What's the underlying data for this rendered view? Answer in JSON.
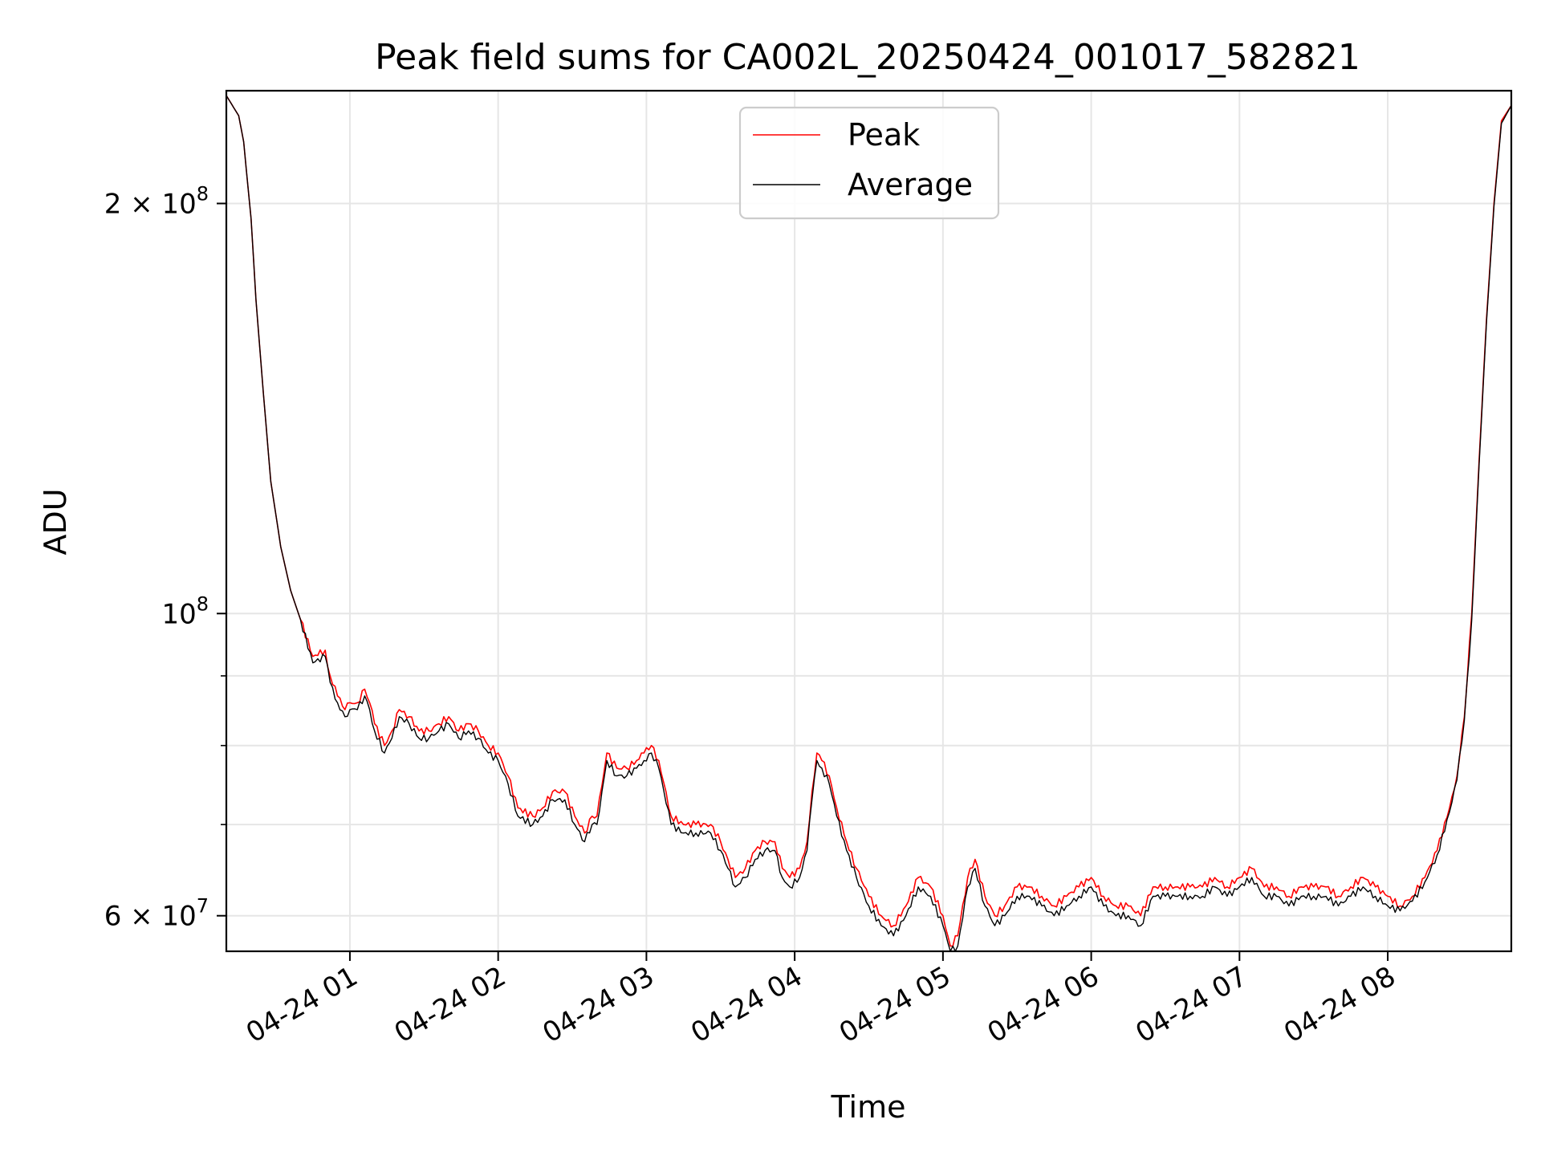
{
  "chart_data": {
    "type": "line",
    "title": "Peak field sums for CA002L_20250424_001017_582821",
    "xlabel": "Time",
    "ylabel": "ADU",
    "yscale": "log",
    "xlim": [
      "2025-04-24 00:10",
      "2025-04-24 08:50"
    ],
    "ylim": [
      56500000,
      242000000
    ],
    "grid": true,
    "legend_position": "top-center",
    "x_ticks": [
      "04-24 01",
      "04-24 02",
      "04-24 03",
      "04-24 04",
      "04-24 05",
      "04-24 06",
      "04-24 07",
      "04-24 08"
    ],
    "y_ticks": [
      {
        "value": 200000000,
        "base": "2 × 10",
        "exp": "8"
      },
      {
        "value": 100000000,
        "base": "10",
        "exp": "8"
      },
      {
        "value": 60000000,
        "base": "6 × 10",
        "exp": "7"
      }
    ],
    "y_minor_ticks": [
      70000000,
      80000000,
      90000000
    ],
    "x": [
      "00:10",
      "00:15",
      "00:17",
      "00:20",
      "00:22",
      "00:25",
      "00:28",
      "00:32",
      "00:36",
      "00:40",
      "00:45",
      "00:50",
      "00:52",
      "00:55",
      "00:58",
      "01:00",
      "01:03",
      "01:06",
      "01:08",
      "01:10",
      "01:14",
      "01:17",
      "01:20",
      "01:24",
      "01:28",
      "01:32",
      "01:36",
      "01:40",
      "01:44",
      "01:48",
      "01:52",
      "01:56",
      "02:00",
      "02:04",
      "02:08",
      "02:14",
      "02:18",
      "02:22",
      "02:27",
      "02:31",
      "02:35",
      "02:38",
      "02:40",
      "02:44",
      "02:48",
      "02:52",
      "02:56",
      "02:59",
      "03:02",
      "03:05",
      "03:10",
      "03:15",
      "03:20",
      "03:26",
      "03:30",
      "03:33",
      "03:36",
      "03:40",
      "03:44",
      "03:48",
      "03:52",
      "03:55",
      "03:58",
      "04:02",
      "04:05",
      "04:07",
      "04:09",
      "04:11",
      "04:14",
      "04:17",
      "04:21",
      "04:25",
      "04:30",
      "04:35",
      "04:40",
      "04:45",
      "04:50",
      "04:55",
      "05:00",
      "05:03",
      "05:06",
      "05:10",
      "05:13",
      "05:17",
      "05:21",
      "05:25",
      "05:30",
      "05:35",
      "05:40",
      "05:45",
      "05:50",
      "05:55",
      "06:00",
      "06:05",
      "06:10",
      "06:15",
      "06:20",
      "06:25",
      "06:30",
      "06:35",
      "06:40",
      "06:45",
      "06:50",
      "06:55",
      "07:00",
      "07:05",
      "07:10",
      "07:15",
      "07:20",
      "07:25",
      "07:30",
      "07:35",
      "07:40",
      "07:45",
      "07:50",
      "07:55",
      "08:00",
      "08:05",
      "08:10",
      "08:15",
      "08:20",
      "08:25",
      "08:28",
      "08:31",
      "08:34",
      "08:37",
      "08:40",
      "08:43",
      "08:46",
      "08:50"
    ],
    "series": [
      {
        "name": "Peak",
        "color": "#ff0000",
        "values": [
          240000000,
          232000000,
          222000000,
          195000000,
          170000000,
          145000000,
          125000000,
          112000000,
          104000000,
          99000000,
          93000000,
          94000000,
          90000000,
          87000000,
          85000000,
          86000000,
          86000000,
          88000000,
          86000000,
          83000000,
          80000000,
          82000000,
          85000000,
          84000000,
          82000000,
          82000000,
          83000000,
          84000000,
          82000000,
          83000000,
          82000000,
          80000000,
          79000000,
          76000000,
          72000000,
          71000000,
          72000000,
          74000000,
          74000000,
          71000000,
          69000000,
          71000000,
          71000000,
          79000000,
          77000000,
          77000000,
          78000000,
          79000000,
          80000000,
          78000000,
          71000000,
          70000000,
          70000000,
          70000000,
          68000000,
          66000000,
          64000000,
          65000000,
          67000000,
          68000000,
          68000000,
          65000000,
          64000000,
          65000000,
          68000000,
          74000000,
          79000000,
          78000000,
          76000000,
          72000000,
          68000000,
          65000000,
          62000000,
          60000000,
          59000000,
          61000000,
          64000000,
          63000000,
          60000000,
          57000000,
          58000000,
          64000000,
          66000000,
          62000000,
          60000000,
          61000000,
          63000000,
          63000000,
          62000000,
          61000000,
          62000000,
          63000000,
          64000000,
          62000000,
          61000000,
          61000000,
          60000000,
          63000000,
          63000000,
          63000000,
          63000000,
          63000000,
          64000000,
          63000000,
          64000000,
          65000000,
          63000000,
          63000000,
          62000000,
          63000000,
          63000000,
          63000000,
          62000000,
          63000000,
          64000000,
          63000000,
          62000000,
          61000000,
          62000000,
          64000000,
          67000000,
          72000000,
          76000000,
          84000000,
          100000000,
          130000000,
          165000000,
          200000000,
          230000000,
          236000000
        ]
      },
      {
        "name": "Average",
        "color": "#000000",
        "values": [
          240000000,
          232000000,
          222000000,
          195000000,
          170000000,
          145000000,
          125000000,
          112000000,
          104000000,
          99000000,
          92000000,
          93000000,
          89000000,
          86000000,
          84000000,
          85000000,
          85000000,
          87000000,
          85000000,
          82000000,
          79000000,
          81000000,
          84000000,
          83000000,
          81000000,
          81000000,
          82000000,
          83000000,
          81000000,
          82000000,
          81000000,
          79000000,
          78000000,
          75000000,
          71000000,
          70000000,
          71000000,
          73000000,
          73000000,
          70000000,
          68000000,
          70000000,
          70000000,
          78000000,
          76000000,
          76000000,
          77000000,
          78000000,
          79000000,
          77000000,
          70000000,
          69000000,
          69000000,
          69000000,
          67000000,
          65000000,
          63000000,
          64000000,
          66000000,
          67000000,
          67000000,
          64000000,
          63000000,
          64000000,
          67000000,
          73000000,
          78000000,
          77000000,
          75000000,
          71000000,
          67000000,
          64000000,
          61000000,
          59000000,
          58000000,
          60000000,
          63000000,
          62000000,
          59000000,
          56500000,
          57000000,
          63000000,
          65000000,
          61000000,
          59000000,
          60000000,
          62000000,
          62000000,
          61000000,
          60000000,
          61000000,
          62000000,
          63000000,
          61000000,
          60000000,
          60000000,
          59000000,
          62000000,
          62000000,
          62000000,
          62000000,
          62000000,
          63000000,
          62000000,
          63000000,
          64000000,
          62000000,
          62000000,
          61000000,
          62000000,
          62000000,
          62000000,
          61000000,
          62000000,
          63000000,
          62000000,
          61000000,
          60500000,
          61500000,
          63500000,
          66500000,
          71500000,
          75500000,
          83500000,
          99000000,
          129000000,
          164000000,
          199000000,
          229000000,
          236000000
        ]
      }
    ]
  }
}
